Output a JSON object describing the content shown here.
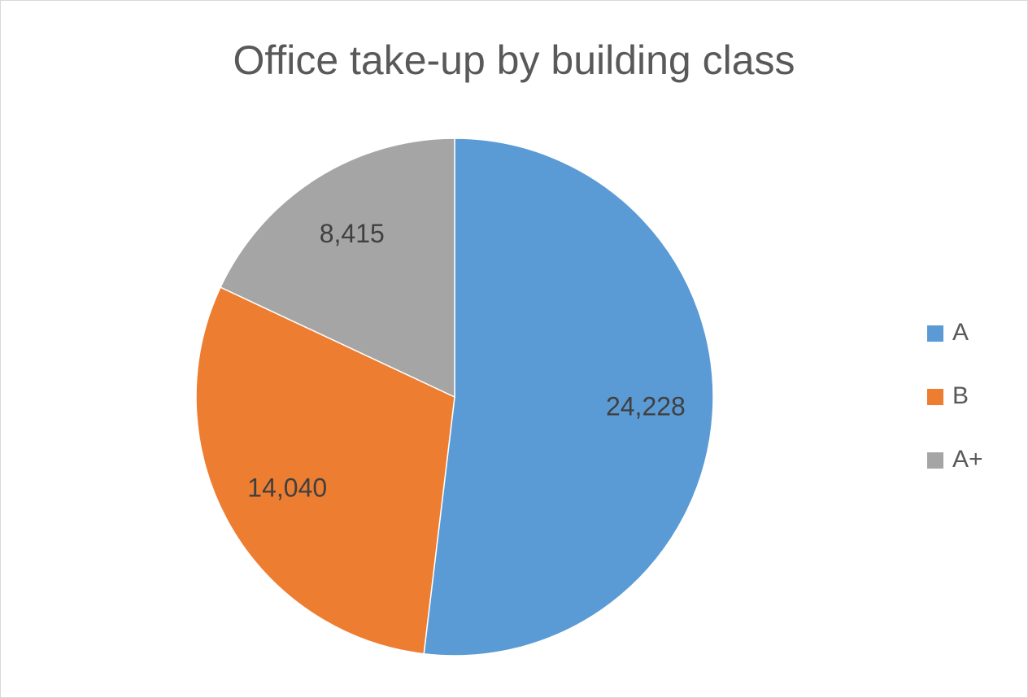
{
  "chart_data": {
    "type": "pie",
    "title": "Office take-up by building class",
    "categories": [
      "A",
      "B",
      "A+"
    ],
    "values": [
      24228,
      14040,
      8415
    ],
    "value_labels": [
      "24,228",
      "14,040",
      "8,415"
    ],
    "colors": [
      "#5b9bd5",
      "#ed7d31",
      "#a5a5a5"
    ],
    "legend": "right"
  }
}
